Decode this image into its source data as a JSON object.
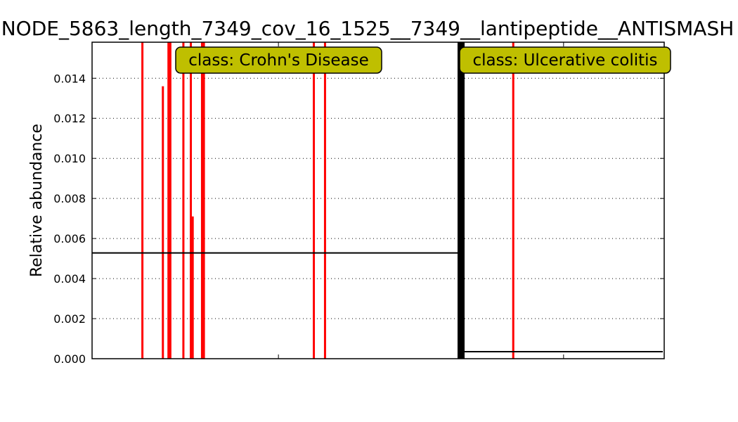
{
  "chart_data": {
    "type": "bar",
    "title": "NODE_5863_length_7349_cov_16_1525__7349__lantipeptide__ANTISMASH",
    "xlabel": "",
    "ylabel": "Relative abundance",
    "ylim": [
      0,
      0.0158
    ],
    "yticks": [
      "0.000",
      "0.002",
      "0.004",
      "0.006",
      "0.008",
      "0.010",
      "0.012",
      "0.014"
    ],
    "grid": true,
    "groups": [
      {
        "label": "class: Crohn's Disease",
        "mean": 0.00528,
        "samples": [
          {
            "x": 27,
            "value": 0.0158
          },
          {
            "x": 38,
            "value": 0.0136
          },
          {
            "x": 41,
            "value": 0.0158
          },
          {
            "x": 42,
            "value": 0.0158
          },
          {
            "x": 49,
            "value": 0.0158
          },
          {
            "x": 53,
            "value": 0.0158
          },
          {
            "x": 54,
            "value": 0.0071
          },
          {
            "x": 59,
            "value": 0.0158
          },
          {
            "x": 60,
            "value": 0.0158
          },
          {
            "x": 119,
            "value": 0.0158
          },
          {
            "x": 125,
            "value": 0.0158
          }
        ]
      },
      {
        "label": "class: Ulcerative colitis",
        "mean": 0.00035,
        "samples": [
          {
            "x": 226,
            "value": 0.0158
          }
        ]
      }
    ],
    "divider_x": 198,
    "xlim": [
      0,
      307
    ],
    "xticks": [
      100,
      253
    ],
    "colors": {
      "bar": "#ff0000",
      "mean_line": "#000000",
      "label_box": "#bfbf00",
      "divider": "#000000",
      "grid": "#000000"
    }
  }
}
